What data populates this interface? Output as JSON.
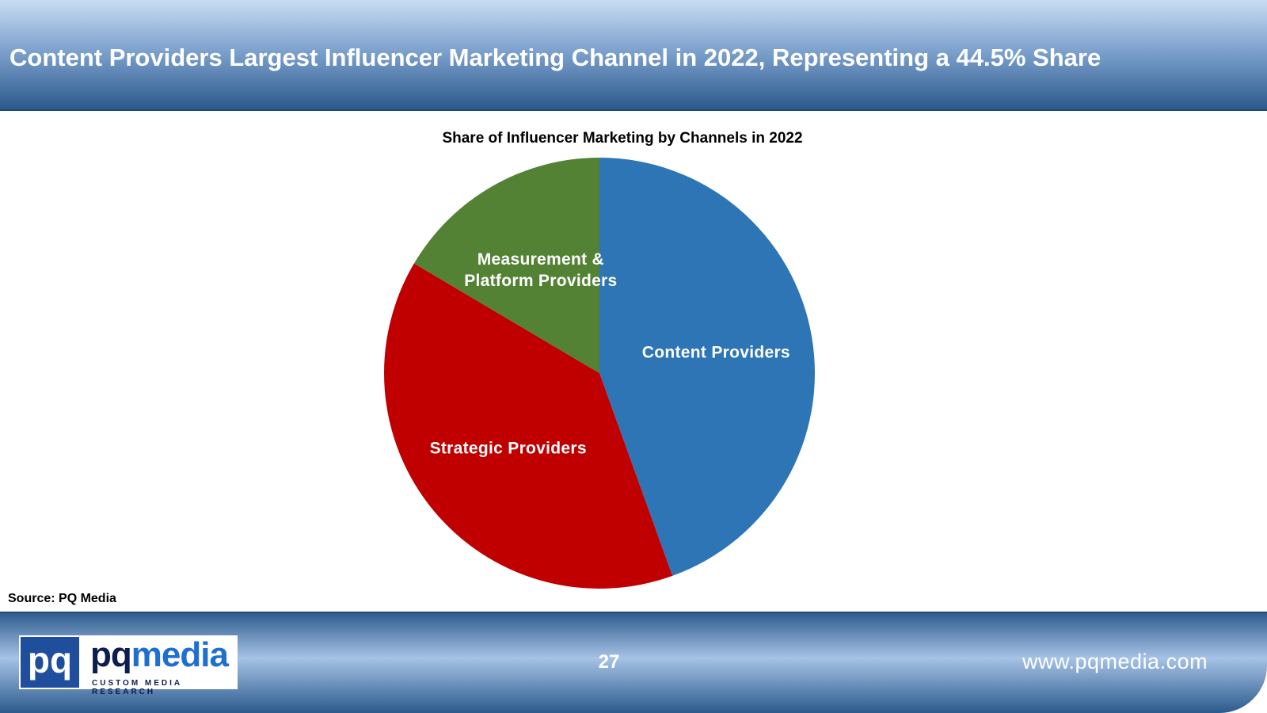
{
  "header": {
    "title": "Content Providers Largest Influencer Marketing Channel in 2022, Representing a 44.5% Share"
  },
  "chart_data": {
    "type": "pie",
    "title": "Share of Influencer Marketing by Channels in 2022",
    "categories": [
      "Content Providers",
      "Strategic Providers",
      "Measurement & Platform Providers"
    ],
    "values": [
      44.5,
      39,
      16.5
    ],
    "colors": [
      "#2e75b6",
      "#c00000",
      "#548235"
    ]
  },
  "source": "Source: PQ Media",
  "footer": {
    "page_number": "27",
    "url": "www.pqmedia.com",
    "logo": {
      "mark": "pq",
      "brand_left": "pq",
      "brand_right": "media",
      "tagline": "CUSTOM MEDIA RESEARCH"
    }
  }
}
